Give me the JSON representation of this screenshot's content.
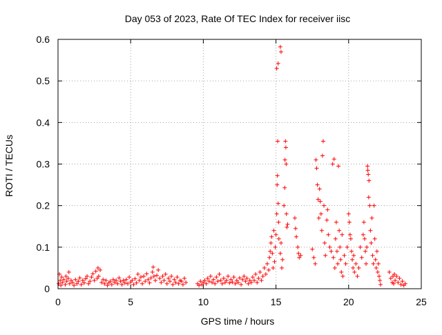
{
  "chart_data": {
    "type": "scatter",
    "title": "Day 053 of 2023, Rate Of TEC Index for receiver iisc",
    "xlabel": "GPS time / hours",
    "ylabel": "ROTI / TECUs",
    "xlim": [
      0,
      25
    ],
    "ylim": [
      0,
      0.6
    ],
    "xticks": [
      0,
      5,
      10,
      15,
      20,
      25
    ],
    "xtick_labels": [
      "0",
      "5",
      "10",
      "15",
      "20",
      "25"
    ],
    "yticks": [
      0,
      0.1,
      0.2,
      0.3,
      0.4,
      0.5,
      0.6
    ],
    "ytick_labels": [
      "0",
      "0.1",
      "0.2",
      "0.3",
      "0.4",
      "0.5",
      "0.6"
    ],
    "grid": true,
    "marker": "+",
    "color": "#ff0000",
    "series": [
      {
        "name": "ROTI",
        "points": [
          [
            0.05,
            0.012
          ],
          [
            0.1,
            0.035
          ],
          [
            0.15,
            0.02
          ],
          [
            0.2,
            0.008
          ],
          [
            0.25,
            0.028
          ],
          [
            0.3,
            0.015
          ],
          [
            0.4,
            0.022
          ],
          [
            0.5,
            0.01
          ],
          [
            0.55,
            0.03
          ],
          [
            0.6,
            0.018
          ],
          [
            0.7,
            0.025
          ],
          [
            0.75,
            0.04
          ],
          [
            0.8,
            0.012
          ],
          [
            0.9,
            0.02
          ],
          [
            1.0,
            0.015
          ],
          [
            1.1,
            0.008
          ],
          [
            1.2,
            0.022
          ],
          [
            1.3,
            0.012
          ],
          [
            1.4,
            0.018
          ],
          [
            1.5,
            0.026
          ],
          [
            1.6,
            0.01
          ],
          [
            1.7,
            0.02
          ],
          [
            1.8,
            0.014
          ],
          [
            1.9,
            0.024
          ],
          [
            2.0,
            0.03
          ],
          [
            2.1,
            0.012
          ],
          [
            2.2,
            0.018
          ],
          [
            2.3,
            0.028
          ],
          [
            2.4,
            0.036
          ],
          [
            2.5,
            0.02
          ],
          [
            2.6,
            0.042
          ],
          [
            2.7,
            0.025
          ],
          [
            2.75,
            0.05
          ],
          [
            2.8,
            0.03
          ],
          [
            2.9,
            0.045
          ],
          [
            3.0,
            0.015
          ],
          [
            3.1,
            0.022
          ],
          [
            3.2,
            0.012
          ],
          [
            3.3,
            0.02
          ],
          [
            3.4,
            0.008
          ],
          [
            3.5,
            0.014
          ],
          [
            3.6,
            0.018
          ],
          [
            3.7,
            0.01
          ],
          [
            3.8,
            0.022
          ],
          [
            3.9,
            0.015
          ],
          [
            4.0,
            0.02
          ],
          [
            4.1,
            0.012
          ],
          [
            4.2,
            0.026
          ],
          [
            4.3,
            0.018
          ],
          [
            4.4,
            0.01
          ],
          [
            4.5,
            0.02
          ],
          [
            4.6,
            0.014
          ],
          [
            4.7,
            0.022
          ],
          [
            4.8,
            0.012
          ],
          [
            4.9,
            0.028
          ],
          [
            5.0,
            0.016
          ],
          [
            5.1,
            0.02
          ],
          [
            5.2,
            0.01
          ],
          [
            5.3,
            0.024
          ],
          [
            5.4,
            0.014
          ],
          [
            5.5,
            0.035
          ],
          [
            5.6,
            0.02
          ],
          [
            5.7,
            0.028
          ],
          [
            5.8,
            0.012
          ],
          [
            5.9,
            0.03
          ],
          [
            6.0,
            0.018
          ],
          [
            6.1,
            0.036
          ],
          [
            6.2,
            0.022
          ],
          [
            6.3,
            0.014
          ],
          [
            6.4,
            0.026
          ],
          [
            6.5,
            0.04
          ],
          [
            6.55,
            0.052
          ],
          [
            6.6,
            0.03
          ],
          [
            6.7,
            0.02
          ],
          [
            6.8,
            0.032
          ],
          [
            6.9,
            0.045
          ],
          [
            7.0,
            0.025
          ],
          [
            7.1,
            0.015
          ],
          [
            7.2,
            0.03
          ],
          [
            7.3,
            0.02
          ],
          [
            7.4,
            0.035
          ],
          [
            7.5,
            0.012
          ],
          [
            7.6,
            0.025
          ],
          [
            7.7,
            0.018
          ],
          [
            7.8,
            0.03
          ],
          [
            7.9,
            0.01
          ],
          [
            8.0,
            0.022
          ],
          [
            8.1,
            0.015
          ],
          [
            8.2,
            0.028
          ],
          [
            8.3,
            0.012
          ],
          [
            8.4,
            0.02
          ],
          [
            8.5,
            0.018
          ],
          [
            8.6,
            0.01
          ],
          [
            8.7,
            0.025
          ],
          [
            8.8,
            0.015
          ],
          [
            9.6,
            0.012
          ],
          [
            9.7,
            0.008
          ],
          [
            9.8,
            0.018
          ],
          [
            9.9,
            0.01
          ],
          [
            10.0,
            0.015
          ],
          [
            10.1,
            0.02
          ],
          [
            10.2,
            0.012
          ],
          [
            10.3,
            0.025
          ],
          [
            10.4,
            0.018
          ],
          [
            10.5,
            0.03
          ],
          [
            10.6,
            0.015
          ],
          [
            10.7,
            0.022
          ],
          [
            10.8,
            0.012
          ],
          [
            10.9,
            0.028
          ],
          [
            11.0,
            0.018
          ],
          [
            11.1,
            0.035
          ],
          [
            11.2,
            0.02
          ],
          [
            11.3,
            0.012
          ],
          [
            11.4,
            0.025
          ],
          [
            11.5,
            0.015
          ],
          [
            11.6,
            0.02
          ],
          [
            11.7,
            0.03
          ],
          [
            11.8,
            0.014
          ],
          [
            11.9,
            0.022
          ],
          [
            12.0,
            0.016
          ],
          [
            12.1,
            0.028
          ],
          [
            12.2,
            0.012
          ],
          [
            12.3,
            0.02
          ],
          [
            12.4,
            0.015
          ],
          [
            12.5,
            0.026
          ],
          [
            12.6,
            0.01
          ],
          [
            12.7,
            0.022
          ],
          [
            12.8,
            0.03
          ],
          [
            12.9,
            0.018
          ],
          [
            13.0,
            0.025
          ],
          [
            13.1,
            0.012
          ],
          [
            13.2,
            0.02
          ],
          [
            13.3,
            0.015
          ],
          [
            13.4,
            0.028
          ],
          [
            13.5,
            0.02
          ],
          [
            13.6,
            0.035
          ],
          [
            13.7,
            0.015
          ],
          [
            13.8,
            0.025
          ],
          [
            13.9,
            0.04
          ],
          [
            14.0,
            0.02
          ],
          [
            14.1,
            0.03
          ],
          [
            14.2,
            0.05
          ],
          [
            14.3,
            0.035
          ],
          [
            14.4,
            0.06
          ],
          [
            14.5,
            0.045
          ],
          [
            14.55,
            0.075
          ],
          [
            14.6,
            0.09
          ],
          [
            14.65,
            0.11
          ],
          [
            14.7,
            0.125
          ],
          [
            14.75,
            0.085
          ],
          [
            14.8,
            0.05
          ],
          [
            14.85,
            0.14
          ],
          [
            14.9,
            0.065
          ],
          [
            14.95,
            0.1
          ],
          [
            15.0,
            0.13
          ],
          [
            15.05,
            0.18
          ],
          [
            15.08,
            0.25
          ],
          [
            15.1,
            0.272
          ],
          [
            15.12,
            0.355
          ],
          [
            15.15,
            0.205
          ],
          [
            15.18,
            0.16
          ],
          [
            15.2,
            0.12
          ],
          [
            15.05,
            0.53
          ],
          [
            15.15,
            0.542
          ],
          [
            15.3,
            0.582
          ],
          [
            15.35,
            0.57
          ],
          [
            15.3,
            0.085
          ],
          [
            15.35,
            0.11
          ],
          [
            15.4,
            0.05
          ],
          [
            15.45,
            0.07
          ],
          [
            15.55,
            0.2
          ],
          [
            15.6,
            0.243
          ],
          [
            15.62,
            0.31
          ],
          [
            15.65,
            0.355
          ],
          [
            15.68,
            0.34
          ],
          [
            15.7,
            0.3
          ],
          [
            15.72,
            0.18
          ],
          [
            15.75,
            0.148
          ],
          [
            15.8,
            0.155
          ],
          [
            16.3,
            0.17
          ],
          [
            16.35,
            0.145
          ],
          [
            16.4,
            0.125
          ],
          [
            16.5,
            0.1
          ],
          [
            16.55,
            0.085
          ],
          [
            16.6,
            0.075
          ],
          [
            16.7,
            0.08
          ],
          [
            17.5,
            0.095
          ],
          [
            17.6,
            0.075
          ],
          [
            17.7,
            0.06
          ],
          [
            17.75,
            0.31
          ],
          [
            17.8,
            0.29
          ],
          [
            17.85,
            0.25
          ],
          [
            17.9,
            0.215
          ],
          [
            17.95,
            0.17
          ],
          [
            18.0,
            0.24
          ],
          [
            18.05,
            0.21
          ],
          [
            18.1,
            0.18
          ],
          [
            18.15,
            0.14
          ],
          [
            18.2,
            0.32
          ],
          [
            18.25,
            0.355
          ],
          [
            18.3,
            0.2
          ],
          [
            18.35,
            0.11
          ],
          [
            18.4,
            0.08
          ],
          [
            18.5,
            0.165
          ],
          [
            18.55,
            0.19
          ],
          [
            18.6,
            0.13
          ],
          [
            18.7,
            0.1
          ],
          [
            18.8,
            0.09
          ],
          [
            18.9,
            0.3
          ],
          [
            18.95,
            0.075
          ],
          [
            19.0,
            0.312
          ],
          [
            19.05,
            0.05
          ],
          [
            19.1,
            0.12
          ],
          [
            19.15,
            0.16
          ],
          [
            19.2,
            0.09
          ],
          [
            19.25,
            0.06
          ],
          [
            19.3,
            0.295
          ],
          [
            19.35,
            0.14
          ],
          [
            19.4,
            0.1
          ],
          [
            19.45,
            0.07
          ],
          [
            19.5,
            0.04
          ],
          [
            19.55,
            0.13
          ],
          [
            19.6,
            0.03
          ],
          [
            19.7,
            0.08
          ],
          [
            19.8,
            0.06
          ],
          [
            19.9,
            0.1
          ],
          [
            20.0,
            0.18
          ],
          [
            20.05,
            0.16
          ],
          [
            20.1,
            0.13
          ],
          [
            20.15,
            0.12
          ],
          [
            20.2,
            0.09
          ],
          [
            20.25,
            0.07
          ],
          [
            20.3,
            0.05
          ],
          [
            20.35,
            0.08
          ],
          [
            20.4,
            0.04
          ],
          [
            20.5,
            0.06
          ],
          [
            20.6,
            0.03
          ],
          [
            20.7,
            0.05
          ],
          [
            20.8,
            0.1
          ],
          [
            20.9,
            0.075
          ],
          [
            21.0,
            0.13
          ],
          [
            21.05,
            0.16
          ],
          [
            21.1,
            0.12
          ],
          [
            21.15,
            0.09
          ],
          [
            21.2,
            0.06
          ],
          [
            21.25,
            0.1
          ],
          [
            21.3,
            0.295
          ],
          [
            21.32,
            0.285
          ],
          [
            21.35,
            0.275
          ],
          [
            21.38,
            0.22
          ],
          [
            21.4,
            0.26
          ],
          [
            21.45,
            0.2
          ],
          [
            21.5,
            0.14
          ],
          [
            21.55,
            0.11
          ],
          [
            21.6,
            0.17
          ],
          [
            21.65,
            0.08
          ],
          [
            21.7,
            0.06
          ],
          [
            21.75,
            0.2
          ],
          [
            21.8,
            0.12
          ],
          [
            21.85,
            0.07
          ],
          [
            21.9,
            0.05
          ],
          [
            21.95,
            0.09
          ],
          [
            22.0,
            0.04
          ],
          [
            22.05,
            0.06
          ],
          [
            22.1,
            0.03
          ],
          [
            22.15,
            0.02
          ],
          [
            22.2,
            0.01
          ],
          [
            22.8,
            0.04
          ],
          [
            22.9,
            0.025
          ],
          [
            23.0,
            0.015
          ],
          [
            23.05,
            0.03
          ],
          [
            23.1,
            0.012
          ],
          [
            23.15,
            0.035
          ],
          [
            23.2,
            0.02
          ],
          [
            23.3,
            0.03
          ],
          [
            23.4,
            0.015
          ],
          [
            23.5,
            0.025
          ],
          [
            23.6,
            0.01
          ],
          [
            23.7,
            0.018
          ],
          [
            23.8,
            0.008
          ],
          [
            23.9,
            0.012
          ]
        ]
      }
    ]
  }
}
